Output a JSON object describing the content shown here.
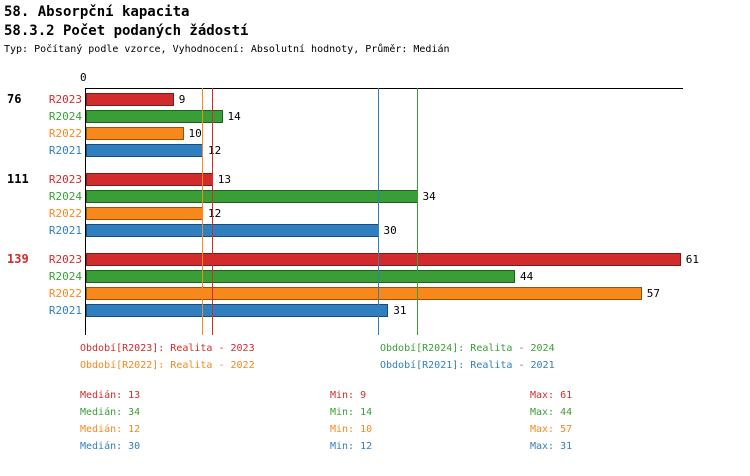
{
  "header": {
    "title": "58. Absorpční kapacita",
    "subtitle": "58.3.2 Počet podaných žádostí",
    "meta": "Typ: Počítaný podle vzorce, Vyhodnocení: Absolutní hodnoty, Průměr: Medián"
  },
  "colors": {
    "R2023": "#d22b2b",
    "R2024": "#3a9e36",
    "R2022": "#f8881c",
    "R2021": "#2f7fc1",
    "axis": "#000000",
    "group_label_default": "#000000",
    "group_label_highlight": "#d22b2b"
  },
  "chart_data": {
    "type": "bar",
    "orientation": "horizontal",
    "grid": false,
    "legend_position": "bottom",
    "x_axis": {
      "origin_label": "0",
      "min": 0,
      "max": 63
    },
    "series_order": [
      "R2023",
      "R2024",
      "R2022",
      "R2021"
    ],
    "groups": [
      {
        "label": "76",
        "highlight": false,
        "bars": [
          {
            "series": "R2023",
            "value": 9
          },
          {
            "series": "R2024",
            "value": 14
          },
          {
            "series": "R2022",
            "value": 10
          },
          {
            "series": "R2021",
            "value": 12
          }
        ]
      },
      {
        "label": "111",
        "highlight": false,
        "bars": [
          {
            "series": "R2023",
            "value": 13
          },
          {
            "series": "R2024",
            "value": 34
          },
          {
            "series": "R2022",
            "value": 12
          },
          {
            "series": "R2021",
            "value": 30
          }
        ]
      },
      {
        "label": "139",
        "highlight": true,
        "bars": [
          {
            "series": "R2023",
            "value": 61
          },
          {
            "series": "R2024",
            "value": 44
          },
          {
            "series": "R2022",
            "value": 57
          },
          {
            "series": "R2021",
            "value": 31
          }
        ]
      }
    ],
    "median_lines": [
      {
        "series": "R2023",
        "value": 13
      },
      {
        "series": "R2024",
        "value": 34
      },
      {
        "series": "R2022",
        "value": 12
      },
      {
        "series": "R2021",
        "value": 30
      }
    ]
  },
  "legend": {
    "items": [
      {
        "series": "R2023",
        "label": "Období[R2023]: Realita - 2023"
      },
      {
        "series": "R2024",
        "label": "Období[R2024]: Realita - 2024"
      },
      {
        "series": "R2022",
        "label": "Období[R2022]: Realita - 2022"
      },
      {
        "series": "R2021",
        "label": "Období[R2021]: Realita - 2021"
      }
    ]
  },
  "summary": {
    "rows": [
      {
        "series": "R2023",
        "median": "Medián: 13",
        "min": "Min: 9",
        "max": "Max: 61"
      },
      {
        "series": "R2024",
        "median": "Medián: 34",
        "min": "Min: 14",
        "max": "Max: 44"
      },
      {
        "series": "R2022",
        "median": "Medián: 12",
        "min": "Min: 10",
        "max": "Max: 57"
      },
      {
        "series": "R2021",
        "median": "Medián: 30",
        "min": "Min: 12",
        "max": "Max: 31"
      }
    ]
  }
}
